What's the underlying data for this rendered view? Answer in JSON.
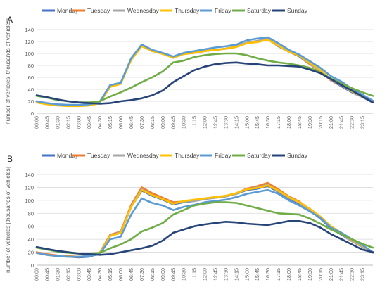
{
  "days": [
    "Monday",
    "Tuesday",
    "Wednesday",
    "Thursday",
    "Friday",
    "Saturday",
    "Sunday"
  ],
  "colors": [
    "#4472C4",
    "#ED7D31",
    "#A5A5A5",
    "#FFC000",
    "#5B9BD5",
    "#70AD47",
    "#264478"
  ],
  "chart_data": [
    {
      "type": "line",
      "panel_label": "A",
      "ylabel": "number of vehicles [thousands of vehicles]",
      "xlabel": "",
      "ylim": [
        0,
        140
      ],
      "yticks": [
        0,
        20,
        40,
        60,
        80,
        100,
        120,
        140
      ],
      "x": [
        "00:00",
        "00:45",
        "01:30",
        "02:15",
        "03:00",
        "03:45",
        "04:30",
        "05:15",
        "06:00",
        "06:45",
        "07:30",
        "08:15",
        "09:00",
        "09:45",
        "10:30",
        "11:15",
        "12:00",
        "12:45",
        "13:30",
        "14:15",
        "15:00",
        "15:45",
        "16:30",
        "17:15",
        "18:00",
        "18:45",
        "19:30",
        "20:15",
        "21:00",
        "21:45",
        "22:30",
        "23:15",
        "24:00"
      ],
      "xtick_labels": [
        "00:00",
        "00:45",
        "01:30",
        "02:15",
        "03:00",
        "03:45",
        "04:30",
        "05:15",
        "06:00",
        "06:45",
        "07:30",
        "08:15",
        "09:00",
        "09:45",
        "10:30",
        "11:15",
        "12:00",
        "12:45",
        "13:30",
        "14:15",
        "15:00",
        "15:45",
        "16:30",
        "17:15",
        "18:00",
        "18:45",
        "19:30",
        "20:15",
        "21:00",
        "21:45",
        "22:30",
        "23:15"
      ],
      "grid": true,
      "legend": "top",
      "series": [
        {
          "name": "Monday",
          "values": [
            19,
            16,
            14,
            13,
            13,
            14,
            18,
            45,
            50,
            90,
            113,
            104,
            100,
            93,
            100,
            101,
            104,
            106,
            108,
            112,
            118,
            120,
            124,
            112,
            103,
            95,
            82,
            70,
            55,
            45,
            35,
            27,
            18
          ]
        },
        {
          "name": "Tuesday",
          "values": [
            19,
            16,
            14,
            13,
            13,
            14,
            18,
            45,
            50,
            90,
            113,
            104,
            100,
            93,
            99,
            101,
            104,
            106,
            108,
            111,
            118,
            121,
            125,
            113,
            103,
            96,
            82,
            70,
            55,
            46,
            36,
            27,
            18
          ]
        },
        {
          "name": "Wednesday",
          "values": [
            19,
            16,
            14,
            13,
            13,
            14,
            18,
            45,
            50,
            90,
            113,
            105,
            100,
            94,
            100,
            102,
            105,
            106,
            108,
            112,
            118,
            121,
            125,
            113,
            103,
            96,
            83,
            70,
            56,
            46,
            36,
            27,
            18
          ]
        },
        {
          "name": "Thursday",
          "values": [
            18,
            15,
            13,
            12,
            12,
            13,
            17,
            44,
            49,
            89,
            112,
            104,
            99,
            93,
            99,
            101,
            104,
            106,
            108,
            111,
            117,
            119,
            123,
            113,
            103,
            96,
            84,
            72,
            57,
            48,
            37,
            28,
            19
          ]
        },
        {
          "name": "Friday",
          "values": [
            20,
            17,
            15,
            14,
            14,
            15,
            19,
            47,
            51,
            92,
            115,
            106,
            101,
            95,
            101,
            104,
            107,
            110,
            112,
            115,
            122,
            125,
            127,
            117,
            106,
            98,
            87,
            76,
            62,
            53,
            41,
            31,
            21
          ]
        },
        {
          "name": "Saturday",
          "values": [
            29,
            26,
            22,
            20,
            18,
            18,
            20,
            28,
            35,
            43,
            52,
            60,
            70,
            85,
            88,
            94,
            97,
            99,
            100,
            100,
            97,
            92,
            88,
            85,
            83,
            80,
            76,
            68,
            58,
            50,
            42,
            35,
            29
          ]
        },
        {
          "name": "Sunday",
          "values": [
            30,
            27,
            23,
            20,
            18,
            17,
            16,
            17,
            20,
            22,
            25,
            30,
            38,
            52,
            62,
            72,
            78,
            82,
            84,
            85,
            83,
            82,
            80,
            80,
            79,
            78,
            73,
            67,
            57,
            47,
            38,
            28,
            18
          ]
        }
      ]
    },
    {
      "type": "line",
      "panel_label": "B",
      "ylabel": "number of vehicles [thousands of vehicles]",
      "xlabel": "",
      "ylim": [
        0,
        140
      ],
      "yticks": [
        0,
        20,
        40,
        60,
        80,
        100,
        120,
        140
      ],
      "x": [
        "00:00",
        "00:45",
        "01:30",
        "02:15",
        "03:00",
        "03:45",
        "04:30",
        "05:15",
        "06:00",
        "06:45",
        "07:30",
        "08:15",
        "09:00",
        "09:45",
        "10:30",
        "11:15",
        "12:00",
        "12:45",
        "13:30",
        "14:15",
        "15:00",
        "15:45",
        "16:30",
        "17:15",
        "18:00",
        "18:45",
        "19:30",
        "20:15",
        "21:00",
        "21:45",
        "22:30",
        "23:15",
        "24:00"
      ],
      "xtick_labels": [
        "00:00",
        "00:45",
        "01:30",
        "02:15",
        "03:00",
        "03:45",
        "04:30",
        "05:15",
        "06:00",
        "06:45",
        "07:30",
        "08:15",
        "09:00",
        "09:45",
        "10:30",
        "11:15",
        "12:00",
        "12:45",
        "13:30",
        "14:15",
        "15:00",
        "15:45",
        "16:30",
        "17:15",
        "18:00",
        "18:45",
        "19:30",
        "20:15",
        "21:00",
        "21:45",
        "22:30",
        "23:15"
      ],
      "grid": true,
      "legend": "top",
      "series": [
        {
          "name": "Monday",
          "values": [
            19,
            16,
            14,
            13,
            12,
            13,
            18,
            45,
            50,
            90,
            115,
            107,
            101,
            94,
            97,
            99,
            102,
            104,
            106,
            110,
            116,
            118,
            122,
            113,
            103,
            95,
            84,
            72,
            57,
            47,
            37,
            28,
            19
          ]
        },
        {
          "name": "Tuesday",
          "values": [
            20,
            17,
            15,
            14,
            13,
            14,
            19,
            47,
            52,
            93,
            120,
            111,
            104,
            97,
            98,
            100,
            103,
            105,
            107,
            111,
            118,
            122,
            127,
            117,
            106,
            98,
            86,
            74,
            59,
            49,
            38,
            29,
            20
          ]
        },
        {
          "name": "Wednesday",
          "values": [
            19,
            16,
            14,
            13,
            13,
            14,
            18,
            46,
            51,
            91,
            117,
            108,
            102,
            95,
            98,
            99,
            102,
            104,
            106,
            110,
            117,
            120,
            124,
            114,
            104,
            96,
            85,
            73,
            58,
            48,
            37,
            28,
            19
          ]
        },
        {
          "name": "Thursday",
          "values": [
            19,
            16,
            14,
            13,
            13,
            14,
            18,
            45,
            50,
            90,
            116,
            108,
            102,
            95,
            99,
            101,
            103,
            105,
            107,
            111,
            117,
            119,
            123,
            115,
            105,
            97,
            87,
            75,
            60,
            50,
            39,
            30,
            20
          ]
        },
        {
          "name": "Friday",
          "values": [
            19,
            16,
            14,
            13,
            13,
            14,
            17,
            40,
            44,
            78,
            103,
            96,
            92,
            85,
            90,
            93,
            97,
            99,
            101,
            105,
            110,
            113,
            116,
            110,
            100,
            92,
            83,
            73,
            58,
            50,
            40,
            31,
            20
          ]
        },
        {
          "name": "Saturday",
          "values": [
            27,
            24,
            21,
            19,
            18,
            18,
            19,
            26,
            32,
            40,
            52,
            58,
            65,
            78,
            85,
            92,
            95,
            97,
            97,
            96,
            92,
            88,
            84,
            80,
            79,
            78,
            72,
            64,
            55,
            48,
            40,
            33,
            27
          ]
        },
        {
          "name": "Sunday",
          "values": [
            28,
            25,
            22,
            20,
            18,
            17,
            16,
            17,
            20,
            23,
            26,
            30,
            38,
            50,
            55,
            60,
            63,
            65,
            67,
            66,
            64,
            63,
            62,
            65,
            68,
            68,
            65,
            58,
            48,
            40,
            32,
            24,
            20
          ]
        }
      ]
    }
  ]
}
